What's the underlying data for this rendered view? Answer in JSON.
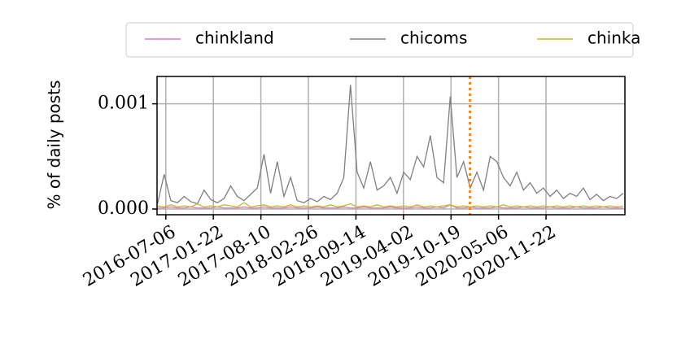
{
  "chart_data": {
    "type": "line",
    "y_label": "% of daily posts",
    "x": [
      "2016-06-01",
      "2016-06-29",
      "2016-07-27",
      "2016-08-24",
      "2016-09-21",
      "2016-10-19",
      "2016-11-16",
      "2016-12-14",
      "2017-01-11",
      "2017-02-08",
      "2017-03-08",
      "2017-04-05",
      "2017-05-03",
      "2017-05-31",
      "2017-06-28",
      "2017-07-26",
      "2017-08-23",
      "2017-09-20",
      "2017-10-18",
      "2017-11-15",
      "2017-12-13",
      "2018-01-10",
      "2018-02-07",
      "2018-03-07",
      "2018-04-04",
      "2018-05-02",
      "2018-05-30",
      "2018-06-27",
      "2018-07-25",
      "2018-08-22",
      "2018-09-19",
      "2018-10-17",
      "2018-11-14",
      "2018-12-12",
      "2019-01-09",
      "2019-02-06",
      "2019-03-06",
      "2019-04-03",
      "2019-05-01",
      "2019-05-29",
      "2019-06-26",
      "2019-07-24",
      "2019-08-21",
      "2019-09-18",
      "2019-10-16",
      "2019-11-13",
      "2019-12-11",
      "2020-01-08",
      "2020-02-05",
      "2020-03-04",
      "2020-04-01",
      "2020-04-29",
      "2020-05-27",
      "2020-06-24",
      "2020-07-22",
      "2020-08-19",
      "2020-09-16",
      "2020-10-14",
      "2020-11-11",
      "2020-12-09",
      "2021-01-06",
      "2021-02-03",
      "2021-03-03",
      "2021-03-31",
      "2021-04-28",
      "2021-05-26",
      "2021-06-23",
      "2021-07-21",
      "2021-08-18",
      "2021-09-15",
      "2021-10-13"
    ],
    "series": [
      {
        "name": "chinkland",
        "color": "#e377c2",
        "values": [
          1e-05,
          1e-05,
          2e-05,
          1e-05,
          1e-05,
          2e-05,
          1e-05,
          1e-05,
          1e-05,
          2e-05,
          1e-05,
          1e-05,
          1e-05,
          2e-05,
          1e-05,
          1e-05,
          2e-05,
          1e-05,
          1e-05,
          1e-05,
          2e-05,
          1e-05,
          1e-05,
          1e-05,
          2e-05,
          1e-05,
          1e-05,
          1e-05,
          2e-05,
          1e-05,
          1e-05,
          2e-05,
          1e-05,
          1e-05,
          1e-05,
          2e-05,
          1e-05,
          1e-05,
          1e-05,
          2e-05,
          1e-05,
          1e-05,
          2e-05,
          1e-05,
          4e-05,
          1e-05,
          1e-05,
          2e-05,
          1e-05,
          1e-05,
          1e-05,
          2e-05,
          1e-05,
          1e-05,
          1e-05,
          2e-05,
          1e-05,
          1e-05,
          1e-05,
          2e-05,
          1e-05,
          1e-05,
          1e-05,
          2e-05,
          1e-05,
          1e-05,
          1e-05,
          2e-05,
          1e-05,
          1e-05,
          1e-05
        ]
      },
      {
        "name": "chicoms",
        "color": "#7f7f7f",
        "values": [
          5e-05,
          0.00033,
          8e-05,
          6e-05,
          0.00012,
          7e-05,
          5e-05,
          0.00018,
          9e-05,
          6e-05,
          0.0001,
          0.00022,
          0.00012,
          8e-05,
          0.00014,
          0.0002,
          0.00052,
          0.00015,
          0.00045,
          0.00012,
          0.0003,
          8e-05,
          6e-05,
          0.0001,
          7e-05,
          0.00012,
          9e-05,
          0.00015,
          0.0003,
          0.00118,
          0.00035,
          0.0002,
          0.00045,
          0.00018,
          0.00022,
          0.0003,
          0.00015,
          0.00035,
          0.00028,
          0.0005,
          0.0004,
          0.0007,
          0.0003,
          0.00025,
          0.00107,
          0.0003,
          0.00045,
          0.0002,
          0.00035,
          0.00018,
          0.0005,
          0.00045,
          0.0003,
          0.00022,
          0.00035,
          0.00018,
          0.00025,
          0.00015,
          0.0002,
          0.00012,
          0.00018,
          0.0001,
          0.00015,
          0.00012,
          0.0002,
          9e-05,
          0.00014,
          8e-05,
          0.00012,
          0.0001,
          0.00015
        ]
      },
      {
        "name": "chinka",
        "color": "#bcbd22",
        "values": [
          3e-05,
          2e-05,
          4e-05,
          2e-05,
          3e-05,
          2e-05,
          5e-05,
          2e-05,
          3e-05,
          2e-05,
          4e-05,
          3e-05,
          2e-05,
          6e-05,
          2e-05,
          3e-05,
          4e-05,
          2e-05,
          3e-05,
          2e-05,
          4e-05,
          2e-05,
          3e-05,
          2e-05,
          3e-05,
          2e-05,
          4e-05,
          2e-05,
          3e-05,
          5e-05,
          2e-05,
          3e-05,
          2e-05,
          4e-05,
          2e-05,
          3e-05,
          2e-05,
          3e-05,
          2e-05,
          4e-05,
          2e-05,
          3e-05,
          2e-05,
          3e-05,
          4e-05,
          2e-05,
          3e-05,
          2e-05,
          3e-05,
          2e-05,
          3e-05,
          2e-05,
          4e-05,
          2e-05,
          3e-05,
          2e-05,
          3e-05,
          2e-05,
          3e-05,
          2e-05,
          3e-05,
          2e-05,
          3e-05,
          2e-05,
          3e-05,
          2e-05,
          3e-05,
          2e-05,
          3e-05,
          2e-05,
          3e-05
        ]
      }
    ],
    "xlim": [
      "2016-05-30",
      "2021-10-20"
    ],
    "xticks": [
      "2016-07-06",
      "2017-01-22",
      "2017-08-10",
      "2018-02-26",
      "2018-09-14",
      "2019-04-02",
      "2019-10-19",
      "2020-05-06",
      "2020-11-22"
    ],
    "ylim": [
      -5.4e-05,
      0.00126
    ],
    "yticks": [
      {
        "value": 0,
        "label": "0.000"
      },
      {
        "value": 0.001,
        "label": "0.001"
      }
    ],
    "grid": true,
    "legend": "top",
    "vlines": [
      {
        "x": "2020-01-07",
        "color": "#ff7f0e"
      }
    ]
  }
}
